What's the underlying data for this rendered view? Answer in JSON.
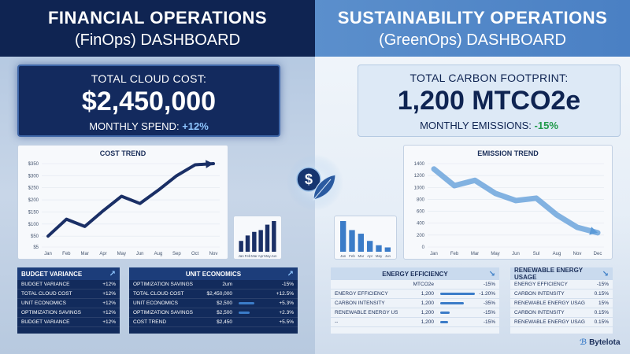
{
  "finops": {
    "title": "FINANCIAL OPERATIONS",
    "subtitle": "(FinOps) DASHBOARD",
    "kpi_label": "TOTAL CLOUD COST:",
    "kpi_value": "$2,450,000",
    "kpi_sub_label": "MONTHLY SPEND:",
    "kpi_sub_value": "+12%"
  },
  "greenops": {
    "title": "SUSTAINABILITY OPERATIONS",
    "subtitle": "(GreenOps) DASHBOARD",
    "kpi_label": "TOTAL CARBON FOOTPRINT:",
    "kpi_value": "1,200 MTCO2e",
    "kpi_sub_label": "MONTHLY EMISSIONS:",
    "kpi_sub_value": "-15%"
  },
  "chart_data": [
    {
      "type": "line",
      "title": "COST TREND",
      "categories": [
        "Jan",
        "Feb",
        "Mar",
        "Apr",
        "May",
        "Jun",
        "Aug",
        "Sep",
        "Oct",
        "Nov"
      ],
      "values": [
        50,
        120,
        90,
        155,
        215,
        185,
        240,
        300,
        345,
        350
      ],
      "y_ticks": [
        "$5",
        "$50",
        "$100",
        "$150",
        "$200",
        "$250",
        "$300",
        "$350"
      ],
      "y_tick_values": [
        5,
        50,
        100,
        150,
        200,
        250,
        300,
        350
      ],
      "ylim": [
        5,
        350
      ],
      "color": "#1a2f66"
    },
    {
      "type": "bar",
      "categories": [
        "Jan",
        "Feb",
        "Mar",
        "Apr",
        "May",
        "Jun"
      ],
      "values": [
        30,
        45,
        55,
        60,
        75,
        85
      ],
      "color": "#1a2f66"
    },
    {
      "type": "bar",
      "categories": [
        "Jan",
        "Feb",
        "Mar",
        "Apr",
        "May",
        "Jun"
      ],
      "values": [
        85,
        60,
        50,
        30,
        18,
        12
      ],
      "color": "#3b7cc8"
    },
    {
      "type": "line",
      "title": "EMISSION TREND",
      "categories": [
        "Jan",
        "Feb",
        "Mar",
        "May",
        "Jun",
        "Sul",
        "Aug",
        "Nov",
        "Dec"
      ],
      "values": [
        1310,
        1030,
        1120,
        900,
        780,
        820,
        540,
        330,
        240
      ],
      "y_ticks": [
        "0",
        "200",
        "400",
        "600",
        "800",
        "1000",
        "1200",
        "1400"
      ],
      "y_tick_values": [
        0,
        200,
        400,
        600,
        800,
        1000,
        1200,
        1400
      ],
      "ylim": [
        0,
        1400
      ],
      "color": "#5b9ad8"
    }
  ],
  "center_icon": "dollar-leaf-icon",
  "budget_table": {
    "title": "BUDGET VARIANCE",
    "rows": [
      {
        "label": "BUDGET VARIANCE",
        "value": "+12%"
      },
      {
        "label": "TOTAL CLOUD COST",
        "value": "+12%"
      },
      {
        "label": "UNIT ECONOMICS",
        "value": "+12%"
      },
      {
        "label": "OPTIMIZATION SAVINGS",
        "value": "+12%"
      },
      {
        "label": "BUDGET VARIANCE",
        "value": "+12%"
      }
    ]
  },
  "unit_table": {
    "title": "UNIT ECONOMICS",
    "rows": [
      {
        "label": "OPTIMIZATION SAVINGS",
        "mid": "2um",
        "value": "-15%"
      },
      {
        "label": "TOTAL CLOUD COST",
        "mid": "$2,450,000",
        "value": "+12.5%"
      },
      {
        "label": "UNIT ECONOMICS",
        "mid": "$2,500",
        "value": "+5.3%"
      },
      {
        "label": "OPTIMIZATION SAVINGS",
        "mid": "$2,500",
        "value": "+2.3%"
      },
      {
        "label": "COST TREND",
        "mid": "$2,450",
        "value": "+5.5%"
      }
    ]
  },
  "energy_table": {
    "title": "ENERGY EFFICIENCY",
    "rows": [
      {
        "label": "",
        "mid": "MTCO2e",
        "value": "-15%"
      },
      {
        "label": "ENERGY EFFICIENCY",
        "mid": "1,200",
        "value": "-1.20%"
      },
      {
        "label": "CARBON INTENSITY",
        "mid": "1,200",
        "value": "-35%"
      },
      {
        "label": "RENEWABLE ENERGY USAGE",
        "mid": "1,200",
        "value": "-15%"
      },
      {
        "label": "--",
        "mid": "1,200",
        "value": "-15%"
      }
    ]
  },
  "renew_table": {
    "title": "RENEWABLE ENERGY USAGE",
    "rows": [
      {
        "label": "ENERGY EFFICIENCY",
        "value": "-15%"
      },
      {
        "label": "CARBON INTENSITY",
        "value": "0.15%"
      },
      {
        "label": "RENEWABLE ENERGY USAGE",
        "value": "15%"
      },
      {
        "label": "CARBON INTENSITY",
        "value": "0.15%"
      },
      {
        "label": "RENEWABLE ENERGY USAGE",
        "value": "0.15%"
      }
    ]
  },
  "brand": "Bytelota",
  "colors": {
    "navy": "#0f2452",
    "accent": "#3b7cc8",
    "green": "#1f9a4a"
  }
}
